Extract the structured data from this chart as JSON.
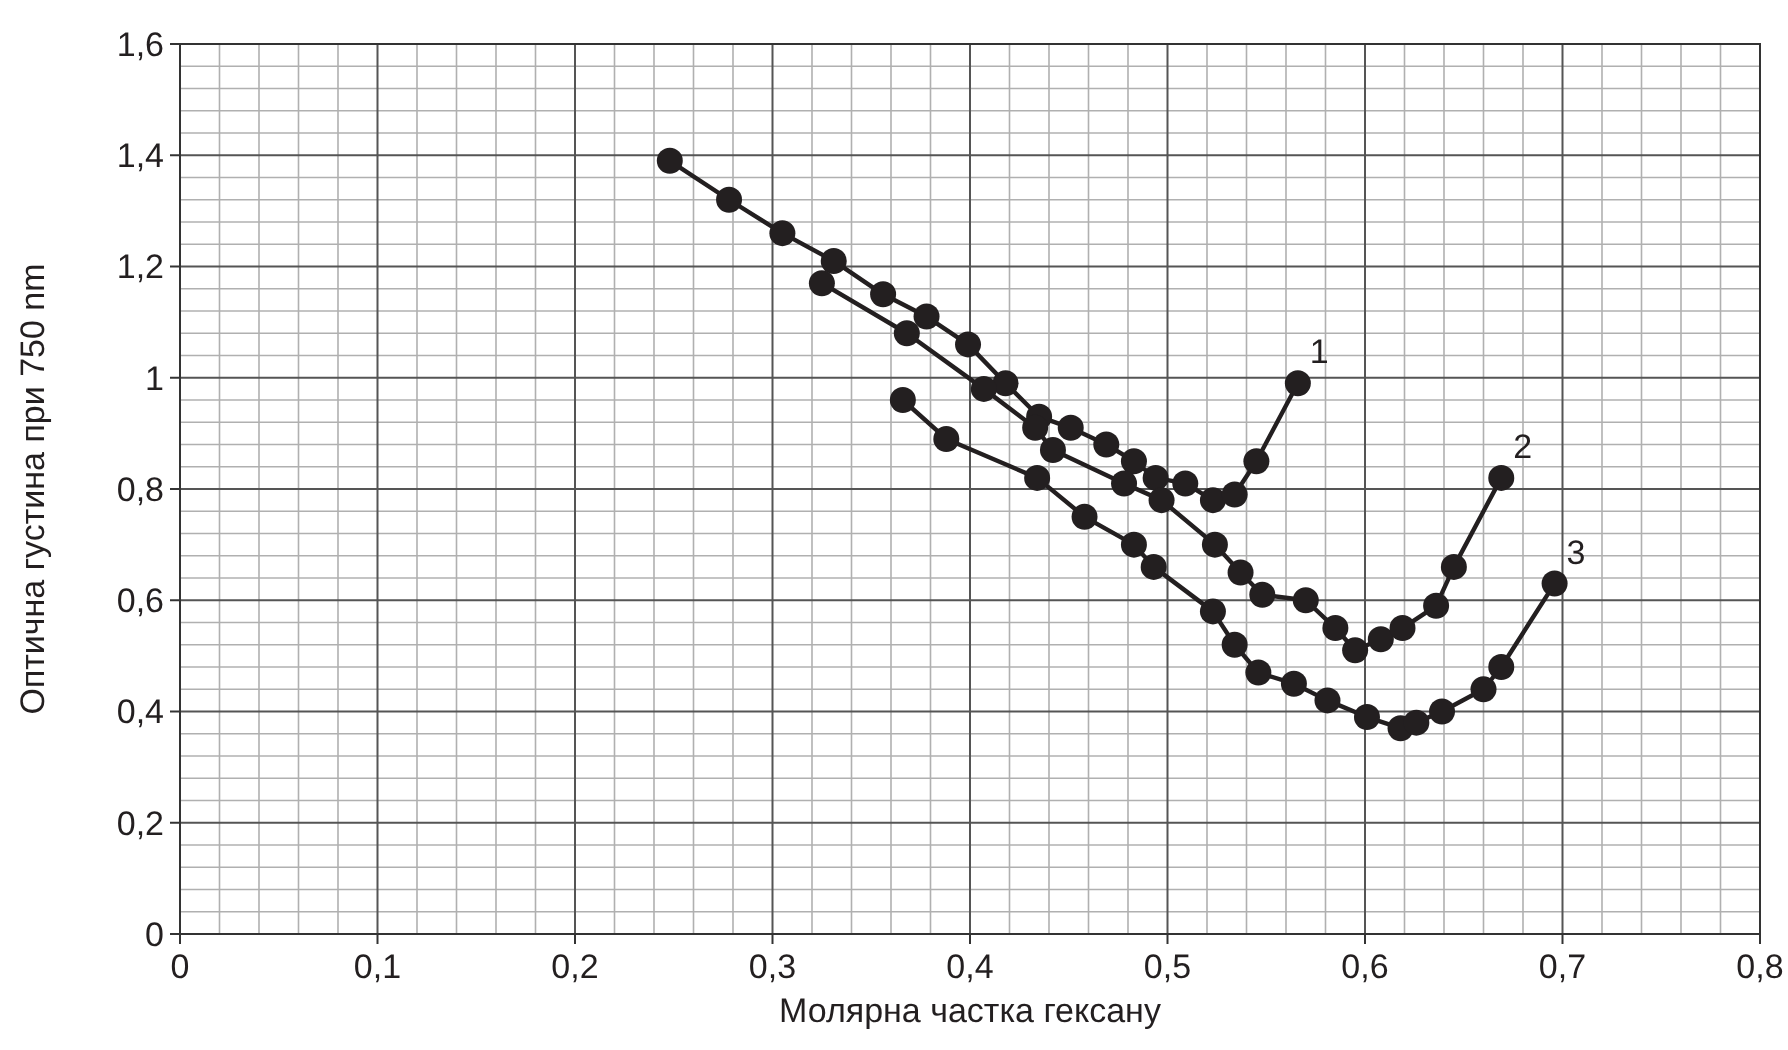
{
  "chart_data": {
    "type": "line",
    "xlabel": "Молярна частка гексану",
    "ylabel": "Оптична густина при 750 nm",
    "xlim": [
      0,
      0.8
    ],
    "ylim": [
      0,
      1.6
    ],
    "xticks": [
      0,
      {
        "value": 0.1,
        "label": "0,1"
      },
      {
        "value": 0.2,
        "label": "0,2"
      },
      {
        "value": 0.3,
        "label": "0,3"
      },
      {
        "value": 0.4,
        "label": "0,4"
      },
      {
        "value": 0.5,
        "label": "0,5"
      },
      {
        "value": 0.6,
        "label": "0,6"
      },
      {
        "value": 0.7,
        "label": "0,7"
      },
      {
        "value": 0.8,
        "label": "0,8"
      }
    ],
    "yticks": [
      0,
      {
        "value": 0.2,
        "label": "0,2"
      },
      {
        "value": 0.4,
        "label": "0,4"
      },
      {
        "value": 0.6,
        "label": "0,6"
      },
      {
        "value": 0.8,
        "label": "0,8"
      },
      1,
      {
        "value": 1.2,
        "label": "1,2"
      },
      {
        "value": 1.4,
        "label": "1,4"
      },
      {
        "value": 1.6,
        "label": "1,6"
      }
    ],
    "grid": true,
    "marker": "circle",
    "line_style": "solid",
    "series": [
      {
        "name": "1",
        "color": "#231f20",
        "x": [
          0.248,
          0.278,
          0.305,
          0.331,
          0.356,
          0.378,
          0.399,
          0.418,
          0.435,
          0.451,
          0.469,
          0.483,
          0.494,
          0.509,
          0.523,
          0.534,
          0.545,
          0.566
        ],
        "values": [
          1.39,
          1.32,
          1.26,
          1.21,
          1.15,
          1.11,
          1.06,
          0.99,
          0.93,
          0.91,
          0.88,
          0.85,
          0.82,
          0.81,
          0.78,
          0.79,
          0.85,
          0.99
        ]
      },
      {
        "name": "2",
        "color": "#231f20",
        "x": [
          0.325,
          0.368,
          0.407,
          0.433,
          0.442,
          0.478,
          0.497,
          0.524,
          0.537,
          0.548,
          0.57,
          0.585,
          0.595,
          0.608,
          0.619,
          0.636,
          0.645,
          0.669
        ],
        "values": [
          1.17,
          1.08,
          0.98,
          0.91,
          0.87,
          0.81,
          0.78,
          0.7,
          0.65,
          0.61,
          0.6,
          0.55,
          0.51,
          0.53,
          0.55,
          0.59,
          0.66,
          0.82
        ]
      },
      {
        "name": "3",
        "color": "#231f20",
        "x": [
          0.366,
          0.388,
          0.434,
          0.458,
          0.483,
          0.493,
          0.523,
          0.534,
          0.546,
          0.564,
          0.581,
          0.601,
          0.618,
          0.626,
          0.639,
          0.66,
          0.669,
          0.696
        ],
        "values": [
          0.96,
          0.89,
          0.82,
          0.75,
          0.7,
          0.66,
          0.58,
          0.52,
          0.47,
          0.45,
          0.42,
          0.39,
          0.37,
          0.38,
          0.4,
          0.44,
          0.48,
          0.63
        ]
      }
    ]
  }
}
